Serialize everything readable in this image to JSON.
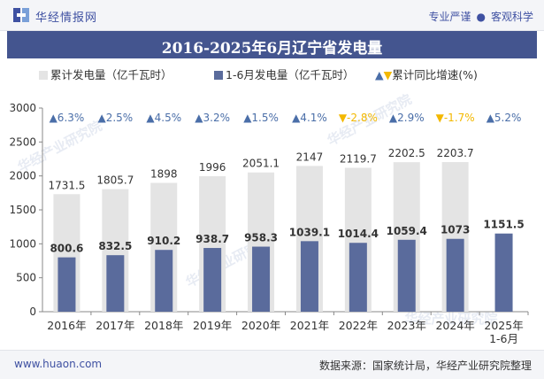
{
  "header": {
    "brand": "华经情报网",
    "tagline_a": "专业严谨",
    "tagline_b": "客观科学",
    "title": "2016-2025年6月辽宁省发电量"
  },
  "footer": {
    "url": "www.huaon.com",
    "source": "数据来源：国家统计局，华经产业研究院整理"
  },
  "watermark": "华经产业研究院",
  "colors": {
    "title_bar": "#44558f",
    "brand": "#3f51a2",
    "cumulative": "#e4e4e4",
    "h1": "#5a6b9c",
    "up": "#4a6ea8",
    "down": "#f3b800"
  },
  "chart_data": {
    "type": "bar",
    "categories": [
      "2016年",
      "2017年",
      "2018年",
      "2019年",
      "2020年",
      "2021年",
      "2022年",
      "2023年",
      "2024年",
      "2025年\n1-6月"
    ],
    "series": [
      {
        "name": "累计发电量（亿千瓦时）",
        "values": [
          1731.5,
          1805.7,
          1898,
          1996,
          2051.1,
          2147,
          2119.7,
          2202.5,
          2203.7,
          null
        ]
      },
      {
        "name": "1-6月发电量（亿千瓦时）",
        "values": [
          800.6,
          832.5,
          910.2,
          938.7,
          958.3,
          1039.1,
          1014.4,
          1059.4,
          1073,
          1151.5
        ]
      }
    ],
    "growth": {
      "name": "累计同比增速(%)",
      "labels": [
        "6.3%",
        "2.5%",
        "4.5%",
        "3.2%",
        "1.5%",
        "4.1%",
        "-2.8%",
        "2.9%",
        "-1.7%",
        "5.2%"
      ],
      "direction": [
        "up",
        "up",
        "up",
        "up",
        "up",
        "up",
        "down",
        "up",
        "down",
        "up"
      ]
    },
    "yticks": [
      0,
      500,
      1000,
      1500,
      2000,
      2500,
      3000
    ],
    "ylim": [
      0,
      3000
    ],
    "grid": false,
    "legend_position": "top"
  }
}
